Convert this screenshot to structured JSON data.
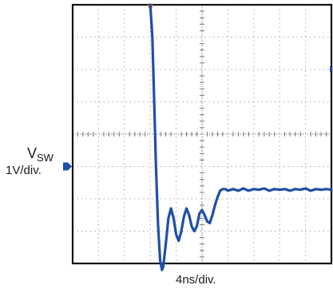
{
  "chart_data": {
    "type": "line",
    "title": "",
    "ylabel_main": "V",
    "ylabel_subscript": "SW",
    "ylabel_scale": "1V/div.",
    "xlabel_scale": "4ns/div.",
    "grid": true,
    "x_divisions": 10,
    "y_divisions": 8,
    "xlim_div": [
      0,
      10
    ],
    "ylim_div": [
      -4,
      4
    ],
    "ground_marker_level_div": -1,
    "trigger_position_div": 3,
    "series": [
      {
        "values_x_div": [
          0,
          2.35,
          3.0,
          3.08,
          3.15,
          3.22,
          3.3,
          3.38,
          3.45,
          3.5,
          3.6,
          3.7,
          3.8,
          3.9,
          4.0,
          4.1,
          4.2,
          4.3,
          4.4,
          4.5,
          4.6,
          4.7,
          4.8,
          4.9,
          5.0,
          5.1,
          5.2,
          5.3,
          5.4,
          5.5,
          5.6,
          5.7,
          5.8,
          5.9,
          6.0,
          6.2,
          6.4,
          6.6,
          6.8,
          7.0,
          7.2,
          7.4,
          7.6,
          7.8,
          8.0,
          8.2,
          8.4,
          8.6,
          8.8,
          9.0,
          9.2,
          9.4,
          9.6,
          9.8,
          10.0
        ],
        "values_y_div": [
          null,
          null,
          4.0,
          3.0,
          1.0,
          -1.0,
          -2.8,
          -3.9,
          -4.2,
          -4.1,
          -3.4,
          -2.6,
          -2.3,
          -2.6,
          -3.1,
          -3.3,
          -3.0,
          -2.55,
          -2.3,
          -2.5,
          -2.85,
          -3.0,
          -2.85,
          -2.45,
          -2.35,
          -2.5,
          -2.7,
          -2.75,
          -2.5,
          -2.2,
          -1.95,
          -1.75,
          -1.7,
          -1.7,
          -1.75,
          -1.7,
          -1.75,
          -1.68,
          -1.75,
          -1.7,
          -1.72,
          -1.68,
          -1.75,
          -1.7,
          -1.72,
          -1.7,
          -1.75,
          -1.7,
          -1.72,
          -1.68,
          -1.75,
          -1.7,
          -1.72,
          -1.7,
          -1.72
        ],
        "color": "#1f4fa8"
      }
    ],
    "colors": {
      "trace": "#1f4fa8",
      "grid": "#aaaaaa",
      "frame": "#111111",
      "trigger_marker": "#e36b2c",
      "ground_marker": "#1f4fa8"
    }
  }
}
